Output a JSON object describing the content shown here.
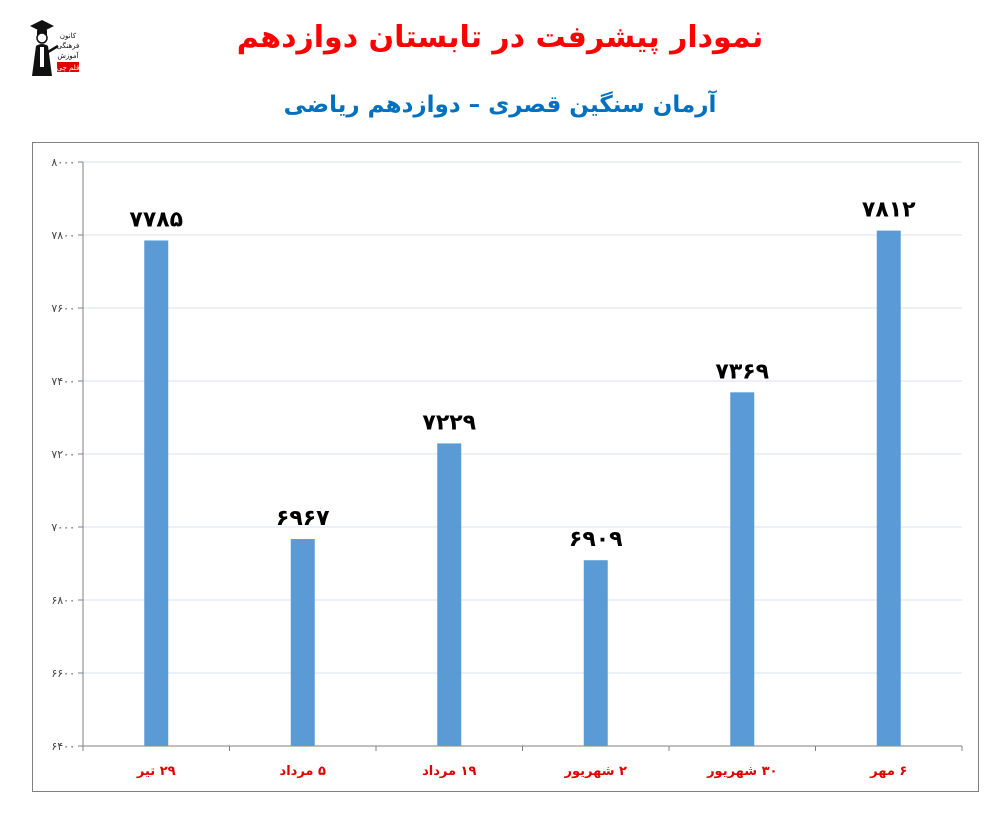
{
  "header": {
    "title": "نمودار پیشرفت در تابستان دوازدهم",
    "subtitle": "آرمان سنگین قصری – دوازدهم ریاضی"
  },
  "logo": {
    "icon": "graduate-mascot-logo",
    "lines": [
      "کانون",
      "فرهنگی",
      "آموزش",
      "قلم چی"
    ]
  },
  "colors": {
    "title": "#ff0000",
    "subtitle": "#0070c0",
    "bar": "#5b9bd5",
    "category_label": "#e00000",
    "grid": "#d9e2f0"
  },
  "chart_data": {
    "type": "bar",
    "categories": [
      "۲۹ تیر",
      "۵ مرداد",
      "۱۹ مرداد",
      "۲ شهریور",
      "۳۰ شهریور",
      "۶ مهر"
    ],
    "values": [
      7785,
      6967,
      7229,
      6909,
      7369,
      7812
    ],
    "value_labels": [
      "۷۷۸۵",
      "۶۹۶۷",
      "۷۲۲۹",
      "۶۹۰۹",
      "۷۳۶۹",
      "۷۸۱۲"
    ],
    "ylim": [
      6400,
      8000
    ],
    "yticks": [
      6400,
      6600,
      6800,
      7000,
      7200,
      7400,
      7600,
      7800,
      8000
    ],
    "ytick_labels": [
      "۶۴۰۰",
      "۶۶۰۰",
      "۶۸۰۰",
      "۷۰۰۰",
      "۷۲۰۰",
      "۷۴۰۰",
      "۷۶۰۰",
      "۷۸۰۰",
      "۸۰۰۰"
    ],
    "grid": true,
    "legend": "none",
    "xlabel": "",
    "ylabel": ""
  }
}
